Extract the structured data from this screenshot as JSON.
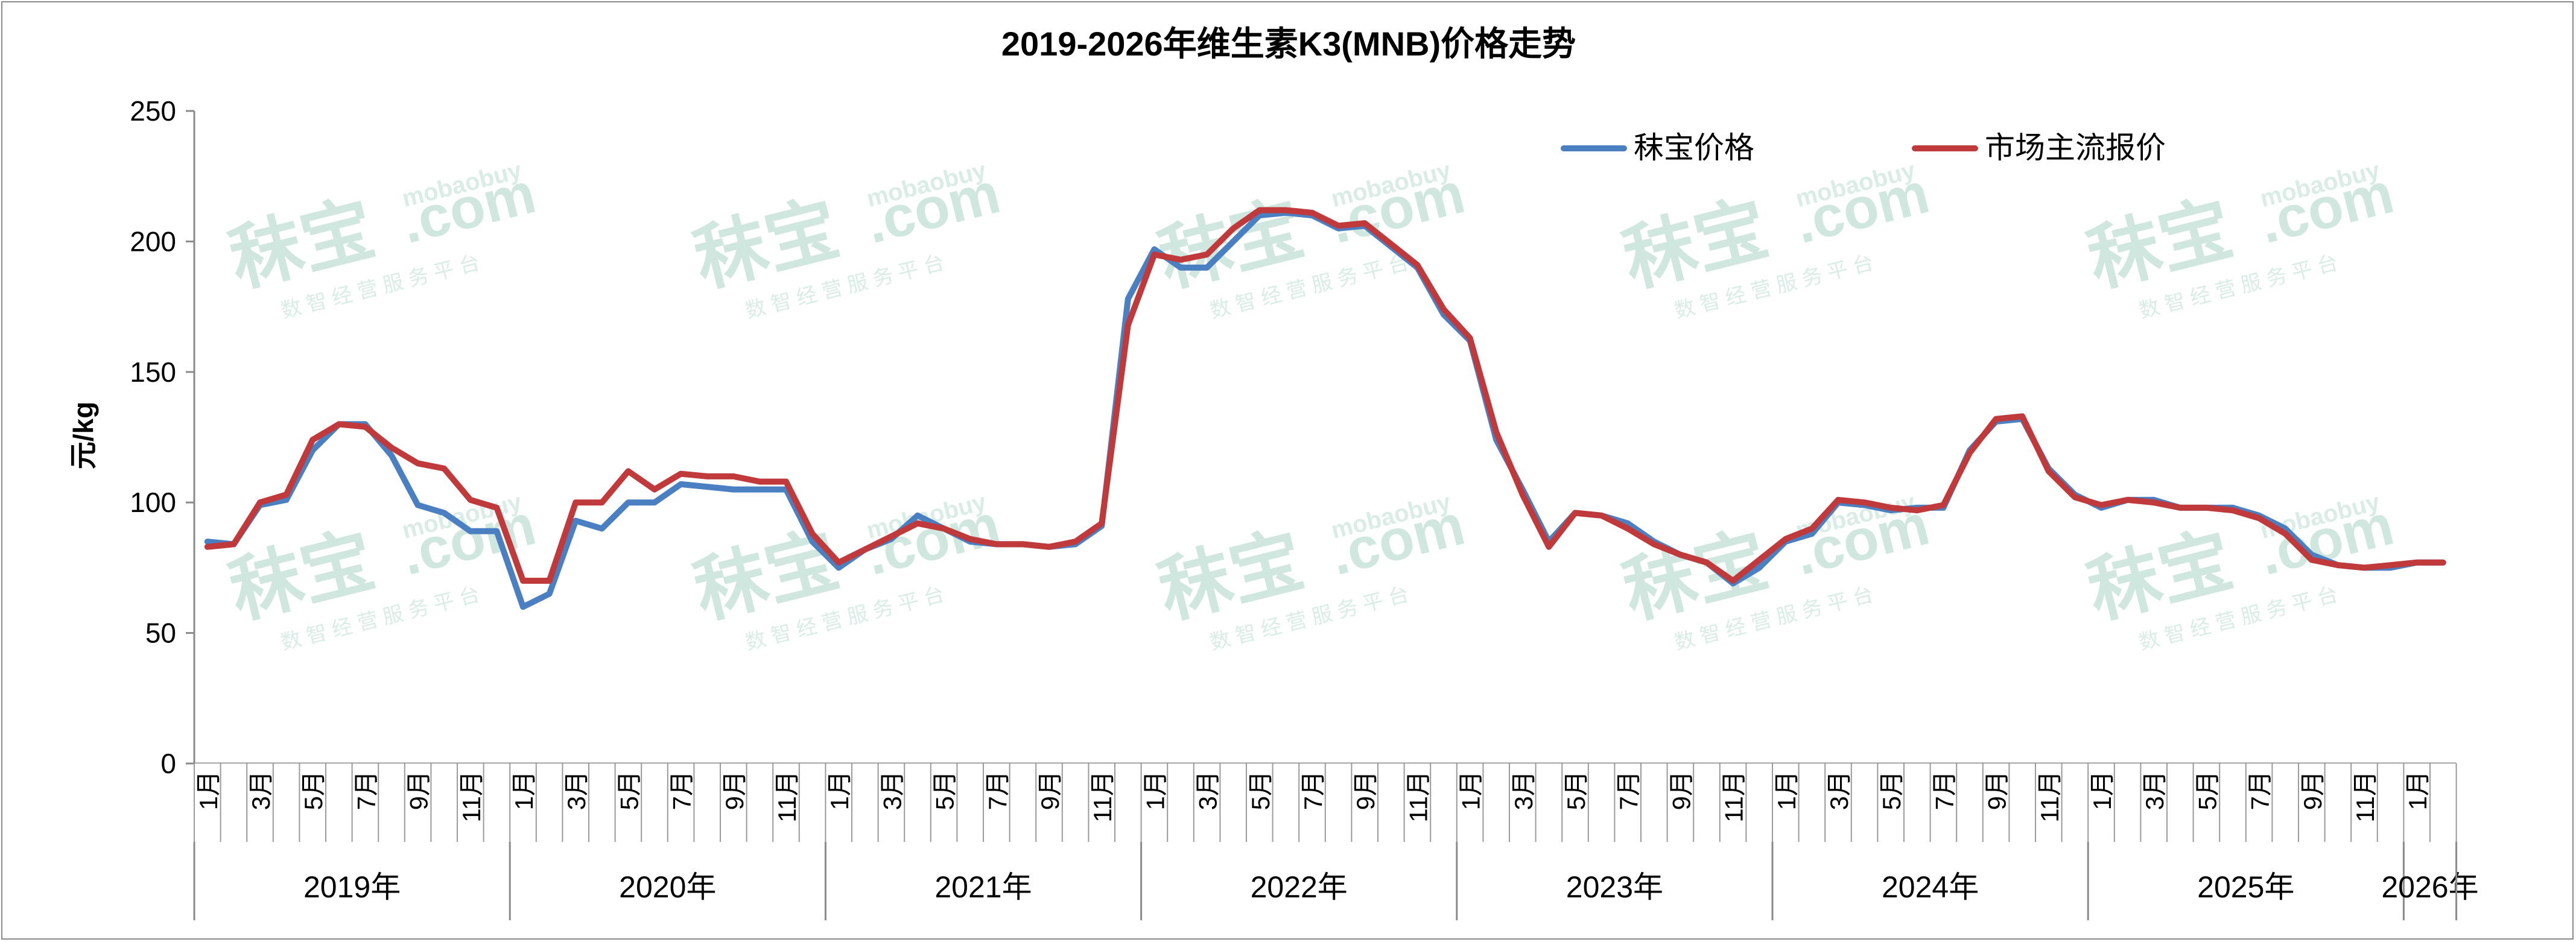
{
  "chart_data": {
    "type": "line",
    "title": "2019-2026年维生素K3(MNB)价格走势",
    "ylabel": "元/kg",
    "xlabel": "",
    "ylim": [
      0,
      250
    ],
    "yticks": [
      "0",
      "50",
      "100",
      "150",
      "200",
      "250"
    ],
    "grid": false,
    "legend_position": "top-right",
    "watermark": {
      "brand": "秣宝",
      "site": "mobaobuy",
      "domain": ".com",
      "slogan": "数 智 经 营 服 务 平 台"
    },
    "years": [
      "2019年",
      "2020年",
      "2021年",
      "2022年",
      "2023年",
      "2024年",
      "2025年",
      "2026年"
    ],
    "month_labels": [
      "1月",
      "3月",
      "5月",
      "7月",
      "9月",
      "11月"
    ],
    "months_shown": 86,
    "series": [
      {
        "name": "秣宝价格",
        "color": "#4a7fc1",
        "points": [
          [
            "2019-01",
            85
          ],
          [
            "2019-02",
            84
          ],
          [
            "2019-03",
            99
          ],
          [
            "2019-04",
            101
          ],
          [
            "2019-05",
            120
          ],
          [
            "2019-06",
            130
          ],
          [
            "2019-07",
            130
          ],
          [
            "2019-08",
            118
          ],
          [
            "2019-09",
            99
          ],
          [
            "2019-10",
            96
          ],
          [
            "2019-11",
            89
          ],
          [
            "2019-12",
            89
          ],
          [
            "2020-01",
            60
          ],
          [
            "2020-02",
            65
          ],
          [
            "2020-03",
            93
          ],
          [
            "2020-04",
            90
          ],
          [
            "2020-05",
            100
          ],
          [
            "2020-06",
            100
          ],
          [
            "2020-07",
            107
          ],
          [
            "2020-08",
            106
          ],
          [
            "2020-09",
            105
          ],
          [
            "2020-10",
            105
          ],
          [
            "2020-11",
            105
          ],
          [
            "2020-12",
            85
          ],
          [
            "2021-01",
            75
          ],
          [
            "2021-02",
            82
          ],
          [
            "2021-03",
            86
          ],
          [
            "2021-04",
            95
          ],
          [
            "2021-05",
            90
          ],
          [
            "2021-06",
            85
          ],
          [
            "2021-07",
            84
          ],
          [
            "2021-08",
            84
          ],
          [
            "2021-09",
            83
          ],
          [
            "2021-10",
            84
          ],
          [
            "2021-11",
            91
          ],
          [
            "2021-12",
            178
          ],
          [
            "2022-01",
            197
          ],
          [
            "2022-02",
            190
          ],
          [
            "2022-03",
            190
          ],
          [
            "2022-04",
            200
          ],
          [
            "2022-05",
            210
          ],
          [
            "2022-06",
            211
          ],
          [
            "2022-07",
            210
          ],
          [
            "2022-08",
            205
          ],
          [
            "2022-09",
            206
          ],
          [
            "2022-10",
            198
          ],
          [
            "2022-11",
            190
          ],
          [
            "2022-12",
            172
          ],
          [
            "2023-01",
            162
          ],
          [
            "2023-02",
            124
          ],
          [
            "2023-03",
            105
          ],
          [
            "2023-04",
            85
          ],
          [
            "2023-05",
            96
          ],
          [
            "2023-06",
            95
          ],
          [
            "2023-07",
            92
          ],
          [
            "2023-08",
            85
          ],
          [
            "2023-09",
            80
          ],
          [
            "2023-10",
            77
          ],
          [
            "2023-11",
            69
          ],
          [
            "2023-12",
            75
          ],
          [
            "2024-01",
            85
          ],
          [
            "2024-02",
            88
          ],
          [
            "2024-03",
            100
          ],
          [
            "2024-04",
            99
          ],
          [
            "2024-05",
            97
          ],
          [
            "2024-06",
            98
          ],
          [
            "2024-07",
            98
          ],
          [
            "2024-08",
            120
          ],
          [
            "2024-09",
            131
          ],
          [
            "2024-10",
            132
          ],
          [
            "2024-11",
            113
          ],
          [
            "2024-12",
            103
          ],
          [
            "2025-01",
            98
          ],
          [
            "2025-02",
            101
          ],
          [
            "2025-03",
            101
          ],
          [
            "2025-04",
            98
          ],
          [
            "2025-05",
            98
          ],
          [
            "2025-06",
            98
          ],
          [
            "2025-07",
            95
          ],
          [
            "2025-08",
            90
          ],
          [
            "2025-09",
            80
          ],
          [
            "2025-10",
            76
          ],
          [
            "2025-11",
            75
          ],
          [
            "2025-12",
            75
          ],
          [
            "2026-01",
            77
          ],
          [
            "2026-02",
            77
          ]
        ]
      },
      {
        "name": "市场主流报价",
        "color": "#c0393b",
        "points": [
          [
            "2019-01",
            83
          ],
          [
            "2019-02",
            84
          ],
          [
            "2019-03",
            100
          ],
          [
            "2019-04",
            103
          ],
          [
            "2019-05",
            124
          ],
          [
            "2019-06",
            130
          ],
          [
            "2019-07",
            129
          ],
          [
            "2019-08",
            121
          ],
          [
            "2019-09",
            115
          ],
          [
            "2019-10",
            113
          ],
          [
            "2019-11",
            101
          ],
          [
            "2019-12",
            98
          ],
          [
            "2020-01",
            70
          ],
          [
            "2020-02",
            70
          ],
          [
            "2020-03",
            100
          ],
          [
            "2020-04",
            100
          ],
          [
            "2020-05",
            112
          ],
          [
            "2020-06",
            105
          ],
          [
            "2020-07",
            111
          ],
          [
            "2020-08",
            110
          ],
          [
            "2020-09",
            110
          ],
          [
            "2020-10",
            108
          ],
          [
            "2020-11",
            108
          ],
          [
            "2020-12",
            88
          ],
          [
            "2021-01",
            77
          ],
          [
            "2021-02",
            82
          ],
          [
            "2021-03",
            87
          ],
          [
            "2021-04",
            92
          ],
          [
            "2021-05",
            90
          ],
          [
            "2021-06",
            86
          ],
          [
            "2021-07",
            84
          ],
          [
            "2021-08",
            84
          ],
          [
            "2021-09",
            83
          ],
          [
            "2021-10",
            85
          ],
          [
            "2021-11",
            92
          ],
          [
            "2021-12",
            168
          ],
          [
            "2022-01",
            195
          ],
          [
            "2022-02",
            193
          ],
          [
            "2022-03",
            195
          ],
          [
            "2022-04",
            205
          ],
          [
            "2022-05",
            212
          ],
          [
            "2022-06",
            212
          ],
          [
            "2022-07",
            211
          ],
          [
            "2022-08",
            206
          ],
          [
            "2022-09",
            207
          ],
          [
            "2022-10",
            199
          ],
          [
            "2022-11",
            191
          ],
          [
            "2022-12",
            174
          ],
          [
            "2023-01",
            163
          ],
          [
            "2023-02",
            127
          ],
          [
            "2023-03",
            103
          ],
          [
            "2023-04",
            83
          ],
          [
            "2023-05",
            96
          ],
          [
            "2023-06",
            95
          ],
          [
            "2023-07",
            90
          ],
          [
            "2023-08",
            84
          ],
          [
            "2023-09",
            80
          ],
          [
            "2023-10",
            77
          ],
          [
            "2023-11",
            70
          ],
          [
            "2023-12",
            78
          ],
          [
            "2024-01",
            86
          ],
          [
            "2024-02",
            90
          ],
          [
            "2024-03",
            101
          ],
          [
            "2024-04",
            100
          ],
          [
            "2024-05",
            98
          ],
          [
            "2024-06",
            97
          ],
          [
            "2024-07",
            99
          ],
          [
            "2024-08",
            119
          ],
          [
            "2024-09",
            132
          ],
          [
            "2024-10",
            133
          ],
          [
            "2024-11",
            112
          ],
          [
            "2024-12",
            102
          ],
          [
            "2025-01",
            99
          ],
          [
            "2025-02",
            101
          ],
          [
            "2025-03",
            100
          ],
          [
            "2025-04",
            98
          ],
          [
            "2025-05",
            98
          ],
          [
            "2025-06",
            97
          ],
          [
            "2025-07",
            94
          ],
          [
            "2025-08",
            88
          ],
          [
            "2025-09",
            78
          ],
          [
            "2025-10",
            76
          ],
          [
            "2025-11",
            75
          ],
          [
            "2025-12",
            76
          ],
          [
            "2026-01",
            77
          ],
          [
            "2026-02",
            77
          ]
        ]
      }
    ]
  }
}
